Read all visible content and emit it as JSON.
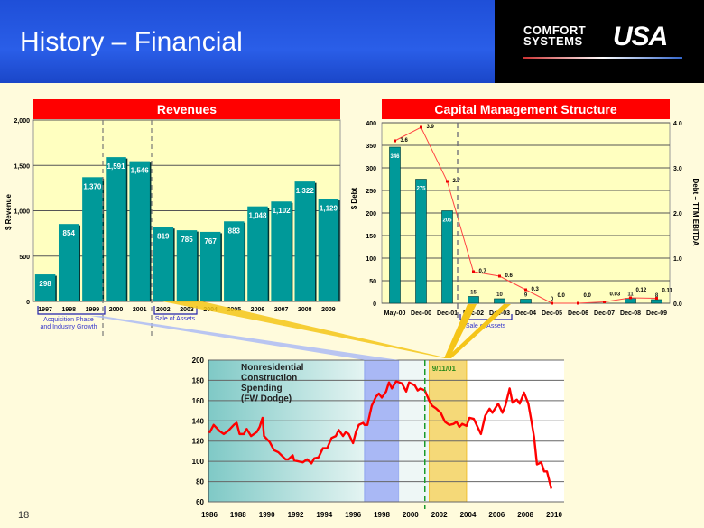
{
  "header": {
    "title": "History – Financial",
    "page_number": "18"
  },
  "logo": {
    "line1": "COMFORT",
    "line2": "SYSTEMS",
    "mark": "USA"
  },
  "colors": {
    "bar": "#009999",
    "title_bar": "#ff0000",
    "line": "#ff0000",
    "header": "#2a5ee8"
  },
  "chart_data": [
    {
      "type": "bar",
      "title": "Revenues",
      "ylabel": "$ Revenue",
      "ylim": [
        0,
        2000
      ],
      "yticks": [
        "0",
        "500",
        "1,000",
        "1,500",
        "2,000"
      ],
      "categories": [
        "1997",
        "1998",
        "1999",
        "2000",
        "2001",
        "2002",
        "2003",
        "2004",
        "2005",
        "2006",
        "2007",
        "2008",
        "2009"
      ],
      "values": [
        298,
        854,
        1370,
        1591,
        1546,
        819,
        785,
        767,
        883,
        1048,
        1102,
        1322,
        1129
      ],
      "labels": [
        "298",
        "854",
        "1,370",
        "1,591",
        "1,546",
        "819",
        "785",
        "767",
        "883",
        "1,048",
        "1,102",
        "1,322",
        "1,129"
      ],
      "annotations": {
        "acquisition": "Acquisition Phase\nand Industry Growth",
        "acq1": "Acquisition Phase",
        "acq2": "and Industry Growth",
        "sale": "Sale of Assets"
      }
    },
    {
      "type": "bar+line",
      "title": "Capital Management Structure",
      "ylabel": "$ Debt",
      "y2label": "Debt – TTM  EBITDA",
      "ylim": [
        0,
        400
      ],
      "y2lim": [
        0,
        4.0
      ],
      "yticks": [
        "0",
        "50",
        "100",
        "150",
        "200",
        "250",
        "300",
        "350",
        "400"
      ],
      "y2ticks": [
        "0.0",
        "1.0",
        "2.0",
        "3.0",
        "4.0"
      ],
      "categories": [
        "May-00",
        "Dec-00",
        "Dec-01",
        "Dec-02",
        "Dec-03",
        "Dec-04",
        "Dec-05",
        "Dec-06",
        "Dec-07",
        "Dec-08",
        "Dec-09"
      ],
      "debt": [
        346,
        275,
        205,
        15,
        10,
        9,
        0,
        0,
        0,
        11,
        8
      ],
      "debt_labels": [
        "346",
        "275",
        "205",
        "15",
        "10",
        "9",
        "0",
        "",
        "",
        "11",
        "8"
      ],
      "ratio": [
        3.6,
        3.9,
        2.7,
        0.7,
        0.6,
        0.3,
        0.0,
        0.0,
        0.03,
        0.12,
        0.11
      ],
      "ratio_labels": [
        "3.6",
        "3.9",
        "2.7",
        "0.7",
        "0.6",
        "0.3",
        "0.0",
        "0.0",
        "0.03",
        "0.12",
        "0.11"
      ],
      "annotations": {
        "sale": "Sale of Assets"
      }
    },
    {
      "type": "line",
      "title": "Nonresidential Construction Spending (FW Dodge)",
      "title_lines": [
        "Nonresidential",
        "Construction",
        "Spending",
        "(FW Dodge)"
      ],
      "ylim": [
        60,
        200
      ],
      "yticks": [
        "60",
        "80",
        "100",
        "120",
        "140",
        "160",
        "180",
        "200"
      ],
      "xlim": [
        1986,
        2010.5
      ],
      "xticks": [
        "1986",
        "1988",
        "1990",
        "1992",
        "1994",
        "1996",
        "1998",
        "2000",
        "2002",
        "2004",
        "2006",
        "2008",
        "2010"
      ],
      "annotation": "9/11/01",
      "event_year": 2001.0,
      "regions": [
        {
          "from": 1986,
          "to": 1996.8,
          "name": "acquisition"
        },
        {
          "from": 1996.8,
          "to": 1999.2,
          "name": "highlight"
        },
        {
          "from": 2001.3,
          "to": 2003.9,
          "name": "sale"
        }
      ],
      "points": [
        [
          1986,
          128
        ],
        [
          1986.3,
          136
        ],
        [
          1986.7,
          130
        ],
        [
          1987,
          127
        ],
        [
          1987.3,
          130
        ],
        [
          1987.7,
          136
        ],
        [
          1987.9,
          138
        ],
        [
          1988.1,
          127
        ],
        [
          1988.4,
          127
        ],
        [
          1988.6,
          132
        ],
        [
          1988.9,
          125
        ],
        [
          1989.3,
          129
        ],
        [
          1989.5,
          134
        ],
        [
          1989.7,
          143
        ],
        [
          1989.8,
          125
        ],
        [
          1990.2,
          119
        ],
        [
          1990.5,
          111
        ],
        [
          1990.8,
          109
        ],
        [
          1991.3,
          102
        ],
        [
          1991.5,
          102
        ],
        [
          1991.8,
          106
        ],
        [
          1991.9,
          101
        ],
        [
          1992.5,
          99
        ],
        [
          1992.8,
          102
        ],
        [
          1993.1,
          98
        ],
        [
          1993.3,
          103
        ],
        [
          1993.6,
          104
        ],
        [
          1993.9,
          113
        ],
        [
          1994.2,
          113
        ],
        [
          1994.5,
          123
        ],
        [
          1994.8,
          125
        ],
        [
          1995,
          131
        ],
        [
          1995.3,
          125
        ],
        [
          1995.5,
          129
        ],
        [
          1995.7,
          127
        ],
        [
          1996,
          118
        ],
        [
          1996.2,
          129
        ],
        [
          1996.4,
          136
        ],
        [
          1996.7,
          138
        ],
        [
          1996.8,
          136
        ],
        [
          1997,
          136
        ],
        [
          1997.3,
          155
        ],
        [
          1997.6,
          164
        ],
        [
          1997.8,
          167
        ],
        [
          1998,
          163
        ],
        [
          1998.3,
          169
        ],
        [
          1998.5,
          178
        ],
        [
          1998.7,
          172
        ],
        [
          1999,
          179
        ],
        [
          1999.4,
          177
        ],
        [
          1999.7,
          169
        ],
        [
          1999.9,
          178
        ],
        [
          2000.3,
          175
        ],
        [
          2000.5,
          170
        ],
        [
          2000.7,
          172
        ],
        [
          2001,
          170
        ],
        [
          2001.3,
          160
        ],
        [
          2001.5,
          155
        ],
        [
          2001.8,
          152
        ],
        [
          2002.1,
          148
        ],
        [
          2002.4,
          139
        ],
        [
          2002.7,
          136
        ],
        [
          2003,
          137
        ],
        [
          2003.2,
          139
        ],
        [
          2003.4,
          134
        ],
        [
          2003.6,
          137
        ],
        [
          2003.9,
          135
        ],
        [
          2004.1,
          143
        ],
        [
          2004.4,
          142
        ],
        [
          2004.7,
          133
        ],
        [
          2004.9,
          127
        ],
        [
          2005.2,
          145
        ],
        [
          2005.5,
          152
        ],
        [
          2005.7,
          148
        ],
        [
          2006.1,
          157
        ],
        [
          2006.4,
          148
        ],
        [
          2006.6,
          155
        ],
        [
          2006.9,
          172
        ],
        [
          2007.1,
          158
        ],
        [
          2007.4,
          161
        ],
        [
          2007.6,
          157
        ],
        [
          2007.9,
          168
        ],
        [
          2008.2,
          157
        ],
        [
          2008.4,
          141
        ],
        [
          2008.6,
          124
        ],
        [
          2008.8,
          97
        ],
        [
          2009.1,
          99
        ],
        [
          2009.3,
          90
        ],
        [
          2009.5,
          90
        ],
        [
          2009.8,
          73
        ]
      ]
    }
  ]
}
